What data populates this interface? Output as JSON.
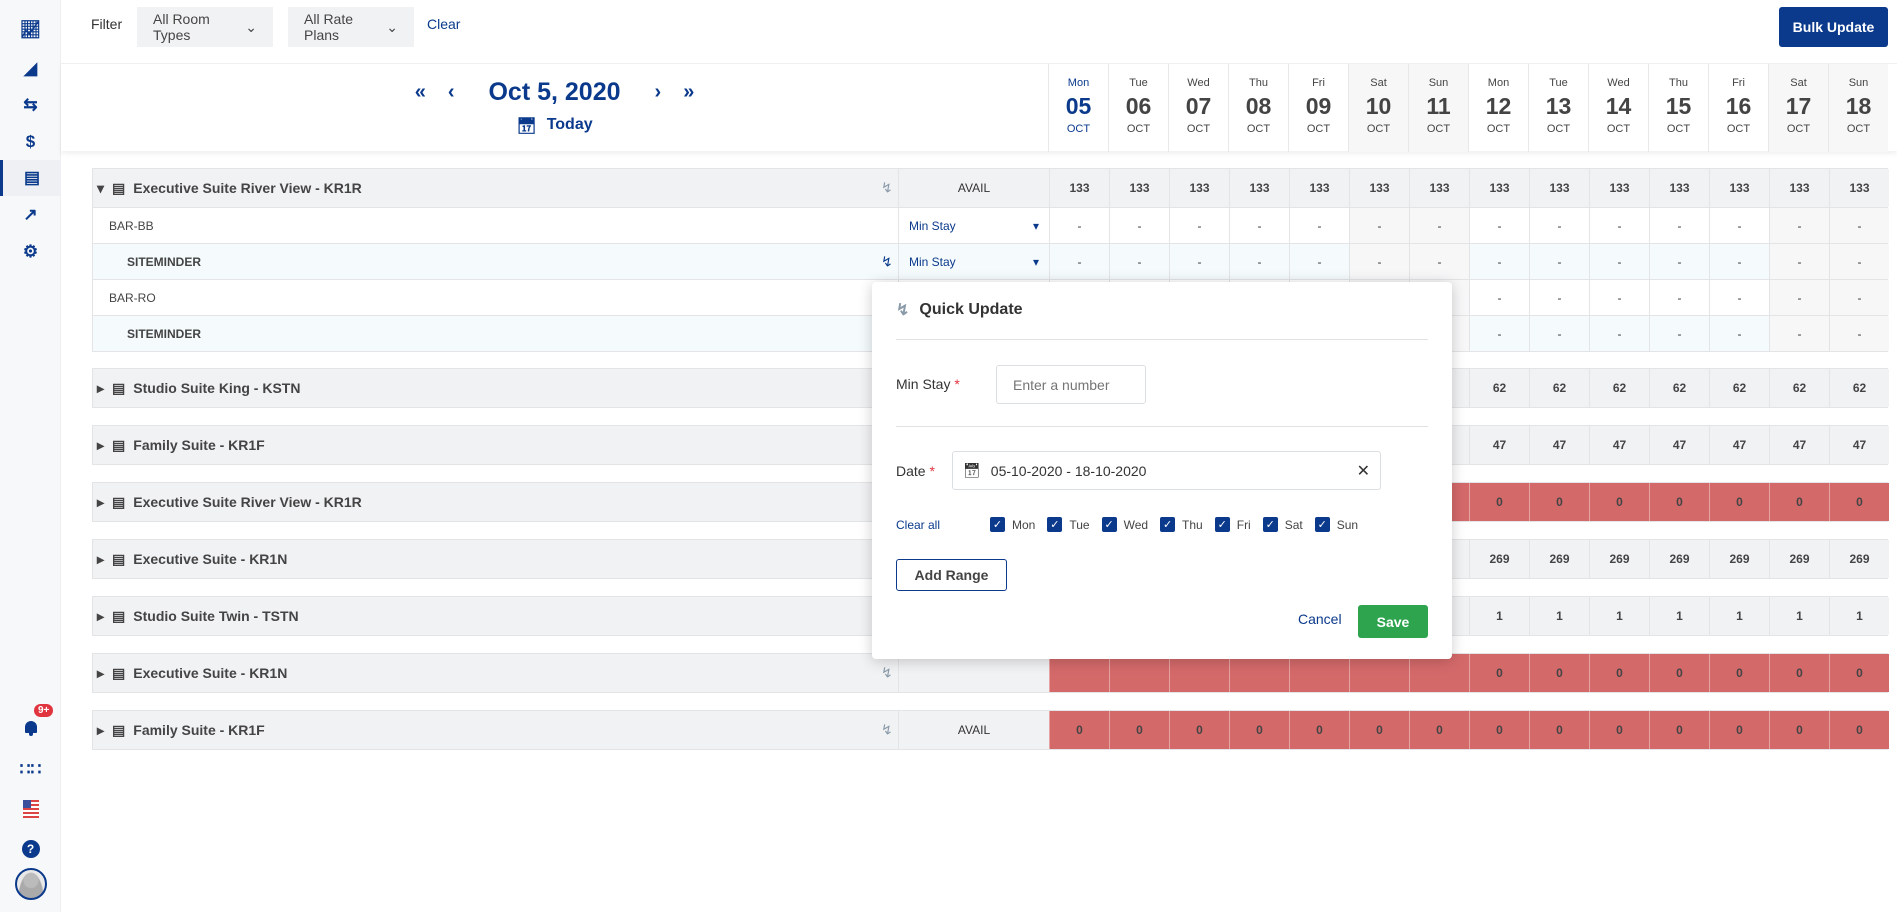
{
  "sidebar": {
    "top_icons": [
      "dashboard-chart-icon",
      "rate-shapes-icon",
      "transfer-arrows-icon",
      "dollar-icon",
      "bed-icon",
      "trend-icon",
      "gear-icon"
    ],
    "active": "bed-icon",
    "bottom_icons": [
      "bell-icon",
      "apps-grid-icon",
      "us-flag-icon",
      "help-icon",
      "avatar"
    ],
    "notification_badge": "9+"
  },
  "filter": {
    "label": "Filter",
    "room_types": "All Room Types",
    "rate_plans": "All Rate Plans",
    "clear": "Clear",
    "bulk_update": "Bulk Update"
  },
  "calendar": {
    "title": "Oct 5, 2020",
    "today": "Today",
    "days": [
      {
        "dn": "Mon",
        "dd": "05",
        "mo": "OCT"
      },
      {
        "dn": "Tue",
        "dd": "06",
        "mo": "OCT"
      },
      {
        "dn": "Wed",
        "dd": "07",
        "mo": "OCT"
      },
      {
        "dn": "Thu",
        "dd": "08",
        "mo": "OCT"
      },
      {
        "dn": "Fri",
        "dd": "09",
        "mo": "OCT"
      },
      {
        "dn": "Sat",
        "dd": "10",
        "mo": "OCT"
      },
      {
        "dn": "Sun",
        "dd": "11",
        "mo": "OCT"
      },
      {
        "dn": "Mon",
        "dd": "12",
        "mo": "OCT"
      },
      {
        "dn": "Tue",
        "dd": "13",
        "mo": "OCT"
      },
      {
        "dn": "Wed",
        "dd": "14",
        "mo": "OCT"
      },
      {
        "dn": "Thu",
        "dd": "15",
        "mo": "OCT"
      },
      {
        "dn": "Fri",
        "dd": "16",
        "mo": "OCT"
      },
      {
        "dn": "Sat",
        "dd": "17",
        "mo": "OCT"
      },
      {
        "dn": "Sun",
        "dd": "18",
        "mo": "OCT"
      }
    ]
  },
  "groups": [
    {
      "name": "Executive Suite River View - KR1R",
      "expanded": true,
      "kind": "AVAIL",
      "value": "133",
      "alert": false,
      "subrows": [
        {
          "name": "BAR-BB",
          "channel": false,
          "select": "Min Stay",
          "value": "-"
        },
        {
          "name": "SITEMINDER",
          "channel": true,
          "select": "Min Stay",
          "value": "-"
        },
        {
          "name": "BAR-RO",
          "channel": false,
          "select": "Min Stay",
          "value": "-"
        },
        {
          "name": "SITEMINDER",
          "channel": true,
          "select": "Min Stay",
          "value": "-"
        }
      ]
    },
    {
      "name": "Studio Suite King - KSTN",
      "expanded": false,
      "kind": "AVAIL",
      "value": "62",
      "alert": false
    },
    {
      "name": "Family Suite - KR1F",
      "expanded": false,
      "kind": "AVAIL",
      "value": "47",
      "alert": false
    },
    {
      "name": "Executive Suite River View - KR1R",
      "expanded": false,
      "kind": "AVAIL",
      "value": "0",
      "alert": true
    },
    {
      "name": "Executive Suite - KR1N",
      "expanded": false,
      "kind": "AVAIL",
      "value": "269",
      "alert": false
    },
    {
      "name": "Studio Suite Twin - TSTN",
      "expanded": false,
      "kind": "AVAIL",
      "value": "1",
      "alert": false
    },
    {
      "name": "Executive Suite - KR1N",
      "expanded": false,
      "kind": "AVAIL",
      "value": "0",
      "alert": true
    },
    {
      "name": "Family Suite - KR1F",
      "expanded": false,
      "kind": "AVAIL",
      "value": "0",
      "alert": true
    }
  ],
  "quick_update": {
    "title": "Quick Update",
    "min_stay_label": "Min Stay",
    "min_stay_placeholder": "Enter a number",
    "min_stay_value": "",
    "date_label": "Date",
    "date_value": "05-10-2020 - 18-10-2020",
    "clear_all": "Clear all",
    "weekdays": [
      {
        "label": "Mon",
        "checked": true
      },
      {
        "label": "Tue",
        "checked": true
      },
      {
        "label": "Wed",
        "checked": true
      },
      {
        "label": "Thu",
        "checked": true
      },
      {
        "label": "Fri",
        "checked": true
      },
      {
        "label": "Sat",
        "checked": true
      },
      {
        "label": "Sun",
        "checked": true
      }
    ],
    "add_range": "Add Range",
    "cancel": "Cancel",
    "save": "Save"
  },
  "colors": {
    "primary": "#0b3a8c",
    "alert_cell": "#d4696a",
    "save": "#2ea44f",
    "badge": "#e0343f"
  }
}
